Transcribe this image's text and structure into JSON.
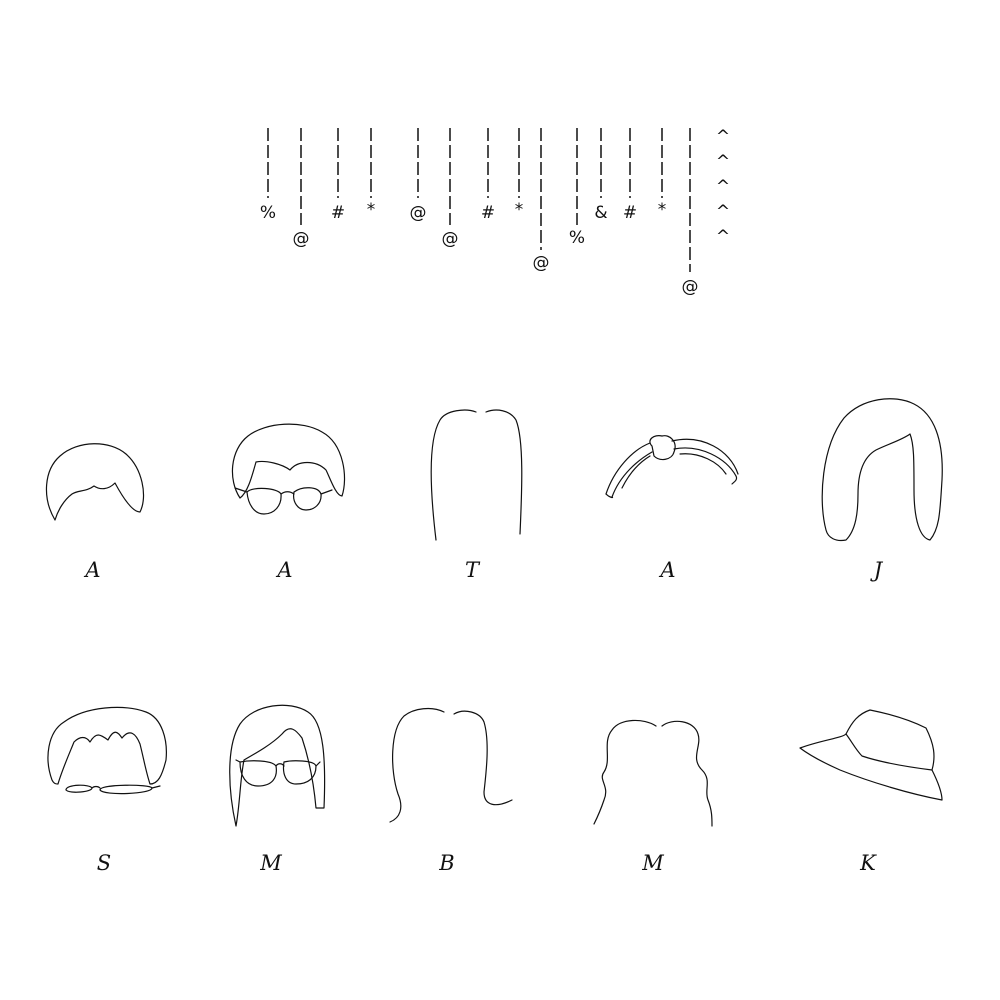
{
  "title": "",
  "code": {
    "columns": [
      {
        "symbol": "%"
      },
      {
        "symbol": "@"
      },
      {
        "symbol": "#"
      },
      {
        "symbol": "*"
      },
      {
        "symbol": "@"
      },
      {
        "symbol": "@"
      },
      {
        "symbol": "#"
      },
      {
        "symbol": "*"
      },
      {
        "symbol": "@"
      },
      {
        "symbol": "%"
      },
      {
        "symbol": "&"
      },
      {
        "symbol": "#"
      },
      {
        "symbol": "*"
      },
      {
        "symbol": "@"
      }
    ],
    "carets": [
      "^",
      "^",
      "^",
      "^",
      "^"
    ]
  },
  "figures": [
    {
      "id": "short-bowl-hair-icon",
      "initial": "A"
    },
    {
      "id": "bob-hair-with-glasses-icon",
      "initial": "A"
    },
    {
      "id": "long-straight-hair-icon",
      "initial": "T"
    },
    {
      "id": "headband-with-knot-icon",
      "initial": "A"
    },
    {
      "id": "long-side-part-hair-icon",
      "initial": "J"
    },
    {
      "id": "spiky-hair-with-glasses-icon",
      "initial": "S"
    },
    {
      "id": "long-hair-with-round-glasses-icon",
      "initial": "M"
    },
    {
      "id": "flipped-bob-hair-icon",
      "initial": "B"
    },
    {
      "id": "wavy-hair-icon",
      "initial": "M"
    },
    {
      "id": "bucket-hat-icon",
      "initial": "K"
    }
  ]
}
